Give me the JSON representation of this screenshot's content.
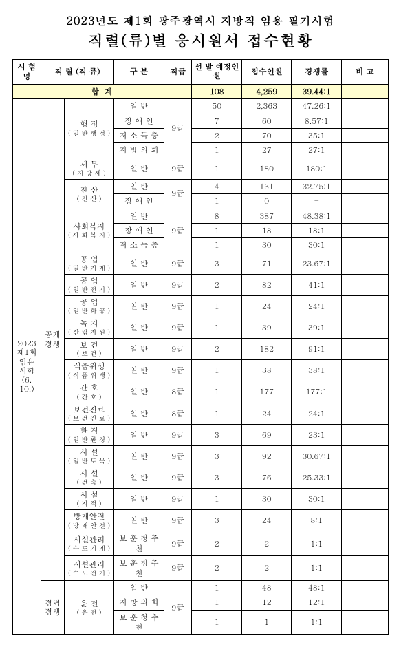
{
  "heading1": "2023년도 제1회 광주광역시 지방직 임용 필기시험",
  "heading2": "직렬(류)별 응시원서 접수현황",
  "header": {
    "exam": "시 험 명",
    "series": "직 렬\n(직 류)",
    "div": "구   분",
    "grade": "직급",
    "planned": "선    발\n예정인원",
    "applicants": "접수인원",
    "ratio": "경쟁률",
    "note": "비   고"
  },
  "sum": {
    "label": "합     계",
    "planned": "108",
    "applicants": "4,259",
    "ratio": "39.44:1"
  },
  "exam_name": {
    "l1": "2023",
    "l2": "제1회",
    "l3": "임용",
    "l4": "시험",
    "l5": "(6. 10.)"
  },
  "type_open": "공개\n경쟁",
  "type_career": "경력\n경쟁",
  "groups": [
    {
      "series": "행    정",
      "sub": "( 일 반 행 정 )",
      "grade": "9급",
      "divs": [
        {
          "d": "일        반",
          "p": "50",
          "a": "2,363",
          "r": "47.26:1"
        },
        {
          "d": "장   애   인",
          "p": "7",
          "a": "60",
          "r": "8.57:1"
        },
        {
          "d": "저  소  득  층",
          "p": "2",
          "a": "70",
          "r": "35:1"
        },
        {
          "d": "지 방 의 회",
          "p": "1",
          "a": "27",
          "r": "27:1"
        }
      ]
    },
    {
      "series": "세    무",
      "sub": "( 지  방  세 )",
      "grade": "9급",
      "divs": [
        {
          "d": "일        반",
          "p": "1",
          "a": "180",
          "r": "180:1"
        }
      ]
    },
    {
      "series": "전    산",
      "sub": "( 전      산 )",
      "grade": "9급",
      "divs": [
        {
          "d": "일        반",
          "p": "4",
          "a": "131",
          "r": "32.75:1"
        },
        {
          "d": "장   애   인",
          "p": "1",
          "a": "0",
          "r": "–"
        }
      ]
    },
    {
      "series": "사회복지",
      "sub": "( 사 회 복 지 )",
      "grade": "9급",
      "divs": [
        {
          "d": "일        반",
          "p": "8",
          "a": "387",
          "r": "48.38:1"
        },
        {
          "d": "장   애   인",
          "p": "1",
          "a": "18",
          "r": "18:1"
        },
        {
          "d": "저  소  득  층",
          "p": "1",
          "a": "30",
          "r": "30:1"
        }
      ]
    },
    {
      "series": "공    업",
      "sub": "( 일 반 기 계 )",
      "grade": "9급",
      "divs": [
        {
          "d": "일        반",
          "p": "3",
          "a": "71",
          "r": "23.67:1"
        }
      ]
    },
    {
      "series": "공    업",
      "sub": "( 일 반 전 기 )",
      "grade": "9급",
      "divs": [
        {
          "d": "일        반",
          "p": "2",
          "a": "82",
          "r": "41:1"
        }
      ]
    },
    {
      "series": "공    업",
      "sub": "( 일 반 화 공 )",
      "grade": "9급",
      "divs": [
        {
          "d": "일        반",
          "p": "1",
          "a": "24",
          "r": "24:1"
        }
      ]
    },
    {
      "series": "녹    지",
      "sub": "( 산 림 자 원 )",
      "grade": "9급",
      "divs": [
        {
          "d": "일        반",
          "p": "1",
          "a": "39",
          "r": "39:1"
        }
      ]
    },
    {
      "series": "보    건",
      "sub": "( 보      건 )",
      "grade": "9급",
      "divs": [
        {
          "d": "일        반",
          "p": "2",
          "a": "182",
          "r": "91:1"
        }
      ]
    },
    {
      "series": "식품위생",
      "sub": "( 식 품 위 생 )",
      "grade": "9급",
      "divs": [
        {
          "d": "일        반",
          "p": "1",
          "a": "38",
          "r": "38:1"
        }
      ]
    },
    {
      "series": "간    호",
      "sub": "( 간      호 )",
      "grade": "8급",
      "divs": [
        {
          "d": "일        반",
          "p": "1",
          "a": "177",
          "r": "177:1"
        }
      ]
    },
    {
      "series": "보건진료",
      "sub": "( 보 건 진 료 )",
      "grade": "8급",
      "divs": [
        {
          "d": "일        반",
          "p": "1",
          "a": "24",
          "r": "24:1"
        }
      ]
    },
    {
      "series": "환    경",
      "sub": "( 일 반 환 경 )",
      "grade": "9급",
      "divs": [
        {
          "d": "일        반",
          "p": "3",
          "a": "69",
          "r": "23:1"
        }
      ]
    },
    {
      "series": "시    설",
      "sub": "( 일 반 토 목 )",
      "grade": "9급",
      "divs": [
        {
          "d": "일        반",
          "p": "3",
          "a": "92",
          "r": "30.67:1"
        }
      ]
    },
    {
      "series": "시    설",
      "sub": "( 건      축 )",
      "grade": "9급",
      "divs": [
        {
          "d": "일        반",
          "p": "3",
          "a": "76",
          "r": "25.33:1"
        }
      ]
    },
    {
      "series": "시    설",
      "sub": "( 지      적 )",
      "grade": "9급",
      "divs": [
        {
          "d": "일        반",
          "p": "1",
          "a": "30",
          "r": "30:1"
        }
      ]
    },
    {
      "series": "방재안전",
      "sub": "( 방 재 안 전 )",
      "grade": "9급",
      "divs": [
        {
          "d": "일        반",
          "p": "3",
          "a": "24",
          "r": "8:1"
        }
      ]
    },
    {
      "series": "시설관리",
      "sub": "( 수 도 기 계 )",
      "grade": "9급",
      "divs": [
        {
          "d": "보 훈 청 추 천",
          "p": "2",
          "a": "2",
          "r": "1:1"
        }
      ]
    },
    {
      "series": "시설관리",
      "sub": "( 수 도 전 기 )",
      "grade": "9급",
      "divs": [
        {
          "d": "보 훈 청 추 천",
          "p": "2",
          "a": "2",
          "r": "1:1"
        }
      ]
    }
  ],
  "career_groups": [
    {
      "series": "운    전",
      "sub": "( 운      전 )",
      "grade": "9급",
      "divs": [
        {
          "d": "일        반",
          "p": "1",
          "a": "48",
          "r": "48:1"
        },
        {
          "d": "지 방 의 회",
          "p": "1",
          "a": "12",
          "r": "12:1"
        },
        {
          "d": "보 훈 청 추 천",
          "p": "1",
          "a": "1",
          "r": "1:1"
        }
      ]
    }
  ]
}
